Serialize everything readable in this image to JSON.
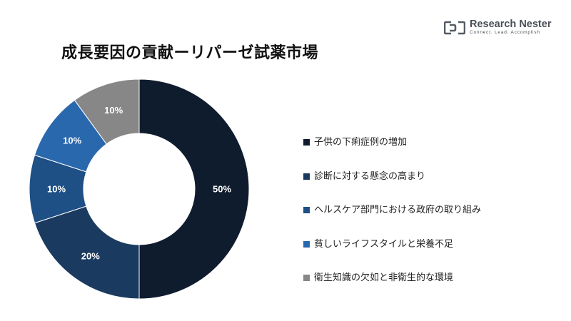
{
  "title": "成長要因の貢献ーリパーゼ試薬市場",
  "logo": {
    "name": "Research Nester",
    "tagline": "Connect. Lead. Accomplish"
  },
  "chart_data": {
    "type": "pie",
    "variant": "donut",
    "title": "成長要因の貢献ーリパーゼ試薬市場",
    "legend_position": "right",
    "slices": [
      {
        "label": "子供の下痢症例の増加",
        "value": 50,
        "display": "50%",
        "color": "#0f1c2e"
      },
      {
        "label": "診断に対する懸念の高まり",
        "value": 20,
        "display": "20%",
        "color": "#1a3a5f"
      },
      {
        "label": "ヘルスケア部門における政府の取り組み",
        "value": 10,
        "display": "10%",
        "color": "#1e4f85"
      },
      {
        "label": "貧しいライフスタイルと栄養不足",
        "value": 10,
        "display": "10%",
        "color": "#2a68ad"
      },
      {
        "label": "衛生知識の欠如と非衛生的な環境",
        "value": 10,
        "display": "10%",
        "color": "#878787"
      }
    ]
  }
}
